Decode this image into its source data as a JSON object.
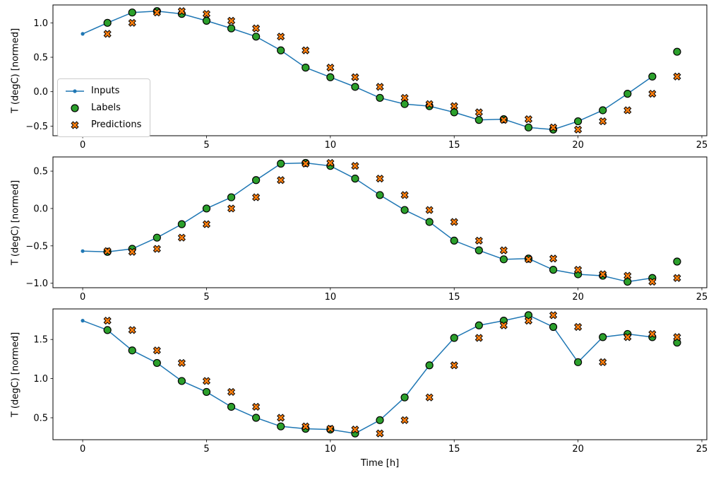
{
  "chart_data": {
    "type": "line",
    "title": "",
    "xlabel": "Time [h]",
    "ylabel": "T (degC) [normed]",
    "xlim": [
      -1.2,
      25.2
    ],
    "x_ticks": [
      0,
      5,
      10,
      15,
      20,
      25
    ],
    "x_tick_labels": [
      "0",
      "5",
      "10",
      "15",
      "20",
      "25"
    ],
    "grid": false,
    "legend": {
      "location": "inside first subplot, left side",
      "items": [
        {
          "label": "Inputs",
          "marker": "line-with-dot",
          "color": "#1f77b4"
        },
        {
          "label": "Labels",
          "marker": "circle",
          "color": "#2ca02c",
          "edge_color": "#000000"
        },
        {
          "label": "Predictions",
          "marker": "x",
          "color": "#ff7f0e",
          "edge_color": "#000000"
        }
      ]
    },
    "subplots": [
      {
        "ylim": [
          -0.64,
          1.26
        ],
        "y_ticks": [
          -0.5,
          0.0,
          0.5,
          1.0
        ],
        "y_tick_labels": [
          "−0.5",
          "0.0",
          "0.5",
          "1.0"
        ],
        "inputs": {
          "x": [
            0,
            1,
            2,
            3,
            4,
            5,
            6,
            7,
            8,
            9,
            10,
            11,
            12,
            13,
            14,
            15,
            16,
            17,
            18,
            19,
            20,
            21,
            22,
            23
          ],
          "values": [
            0.84,
            1.0,
            1.15,
            1.17,
            1.13,
            1.03,
            0.92,
            0.8,
            0.6,
            0.35,
            0.21,
            0.07,
            -0.09,
            -0.18,
            -0.21,
            -0.3,
            -0.41,
            -0.4,
            -0.52,
            -0.55,
            -0.43,
            -0.27,
            -0.03,
            0.22
          ]
        },
        "labels": {
          "x": [
            1,
            2,
            3,
            4,
            5,
            6,
            7,
            8,
            9,
            10,
            11,
            12,
            13,
            14,
            15,
            16,
            17,
            18,
            19,
            20,
            21,
            22,
            23,
            24
          ],
          "values": [
            1.0,
            1.15,
            1.17,
            1.13,
            1.03,
            0.92,
            0.8,
            0.6,
            0.35,
            0.21,
            0.07,
            -0.09,
            -0.18,
            -0.21,
            -0.3,
            -0.41,
            -0.4,
            -0.52,
            -0.55,
            -0.43,
            -0.27,
            -0.03,
            0.22,
            0.58
          ]
        },
        "predictions": {
          "x": [
            1,
            2,
            3,
            4,
            5,
            6,
            7,
            8,
            9,
            10,
            11,
            12,
            13,
            14,
            15,
            16,
            17,
            18,
            19,
            20,
            21,
            22,
            23,
            24
          ],
          "values": [
            0.84,
            1.0,
            1.15,
            1.17,
            1.13,
            1.03,
            0.92,
            0.8,
            0.6,
            0.35,
            0.21,
            0.07,
            -0.09,
            -0.18,
            -0.21,
            -0.3,
            -0.41,
            -0.4,
            -0.52,
            -0.55,
            -0.43,
            -0.27,
            -0.03,
            0.22
          ]
        }
      },
      {
        "ylim": [
          -1.06,
          0.69
        ],
        "y_ticks": [
          -1.0,
          -0.5,
          0.0,
          0.5
        ],
        "y_tick_labels": [
          "−1.0",
          "−0.5",
          "0.0",
          "0.5"
        ],
        "inputs": {
          "x": [
            0,
            1,
            2,
            3,
            4,
            5,
            6,
            7,
            8,
            9,
            10,
            11,
            12,
            13,
            14,
            15,
            16,
            17,
            18,
            19,
            20,
            21,
            22,
            23
          ],
          "values": [
            -0.57,
            -0.58,
            -0.54,
            -0.39,
            -0.21,
            0.0,
            0.15,
            0.38,
            0.6,
            0.61,
            0.57,
            0.4,
            0.18,
            -0.02,
            -0.18,
            -0.43,
            -0.56,
            -0.68,
            -0.67,
            -0.82,
            -0.88,
            -0.9,
            -0.98,
            -0.93
          ]
        },
        "labels": {
          "x": [
            1,
            2,
            3,
            4,
            5,
            6,
            7,
            8,
            9,
            10,
            11,
            12,
            13,
            14,
            15,
            16,
            17,
            18,
            19,
            20,
            21,
            22,
            23,
            24
          ],
          "values": [
            -0.58,
            -0.54,
            -0.39,
            -0.21,
            0.0,
            0.15,
            0.38,
            0.6,
            0.61,
            0.57,
            0.4,
            0.18,
            -0.02,
            -0.18,
            -0.43,
            -0.56,
            -0.68,
            -0.67,
            -0.82,
            -0.88,
            -0.9,
            -0.98,
            -0.93,
            -0.71
          ]
        },
        "predictions": {
          "x": [
            1,
            2,
            3,
            4,
            5,
            6,
            7,
            8,
            9,
            10,
            11,
            12,
            13,
            14,
            15,
            16,
            17,
            18,
            19,
            20,
            21,
            22,
            23,
            24
          ],
          "values": [
            -0.57,
            -0.58,
            -0.54,
            -0.39,
            -0.21,
            0.0,
            0.15,
            0.38,
            0.6,
            0.61,
            0.57,
            0.4,
            0.18,
            -0.02,
            -0.18,
            -0.43,
            -0.56,
            -0.68,
            -0.67,
            -0.82,
            -0.88,
            -0.9,
            -0.98,
            -0.93
          ]
        }
      },
      {
        "ylim": [
          0.22,
          1.89
        ],
        "y_ticks": [
          0.5,
          1.0,
          1.5
        ],
        "y_tick_labels": [
          "0.5",
          "1.0",
          "1.5"
        ],
        "inputs": {
          "x": [
            0,
            1,
            2,
            3,
            4,
            5,
            6,
            7,
            8,
            9,
            10,
            11,
            12,
            13,
            14,
            15,
            16,
            17,
            18,
            19,
            20,
            21,
            22,
            23
          ],
          "values": [
            1.74,
            1.62,
            1.36,
            1.2,
            0.97,
            0.83,
            0.64,
            0.5,
            0.39,
            0.36,
            0.35,
            0.3,
            0.47,
            0.76,
            1.17,
            1.52,
            1.68,
            1.74,
            1.81,
            1.66,
            1.21,
            1.53,
            1.57,
            1.53
          ]
        },
        "labels": {
          "x": [
            1,
            2,
            3,
            4,
            5,
            6,
            7,
            8,
            9,
            10,
            11,
            12,
            13,
            14,
            15,
            16,
            17,
            18,
            19,
            20,
            21,
            22,
            23,
            24
          ],
          "values": [
            1.62,
            1.36,
            1.2,
            0.97,
            0.83,
            0.64,
            0.5,
            0.39,
            0.36,
            0.35,
            0.3,
            0.47,
            0.76,
            1.17,
            1.52,
            1.68,
            1.74,
            1.81,
            1.66,
            1.21,
            1.53,
            1.57,
            1.53,
            1.46
          ]
        },
        "predictions": {
          "x": [
            1,
            2,
            3,
            4,
            5,
            6,
            7,
            8,
            9,
            10,
            11,
            12,
            13,
            14,
            15,
            16,
            17,
            18,
            19,
            20,
            21,
            22,
            23,
            24
          ],
          "values": [
            1.74,
            1.62,
            1.36,
            1.2,
            0.97,
            0.83,
            0.64,
            0.5,
            0.39,
            0.36,
            0.35,
            0.3,
            0.47,
            0.76,
            1.17,
            1.52,
            1.68,
            1.74,
            1.81,
            1.66,
            1.21,
            1.53,
            1.57,
            1.53
          ]
        }
      }
    ]
  }
}
